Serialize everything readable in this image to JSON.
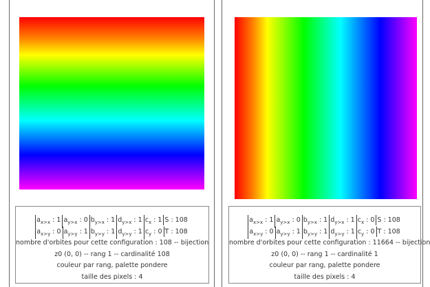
{
  "panels": [
    {
      "formula": [
        [
          {
            "sym": "a",
            "sub": "x>x",
            "value": 1
          },
          {
            "sym": "a",
            "sub": "y>x",
            "value": 0
          },
          {
            "sym": "b",
            "sub": "y>x",
            "value": 1
          },
          {
            "sym": "d",
            "sub": "y>x",
            "value": 1
          },
          {
            "sym": "c",
            "sub": "x",
            "value": 1
          },
          {
            "sym": "S",
            "value": 108
          }
        ],
        [
          {
            "sym": "a",
            "sub": "x>y",
            "value": 0
          },
          {
            "sym": "a",
            "sub": "y>y",
            "value": 1
          },
          {
            "sym": "b",
            "sub": "y>y",
            "value": 1
          },
          {
            "sym": "d",
            "sub": "y>y",
            "value": 1
          },
          {
            "sym": "c",
            "sub": "y",
            "value": 0
          },
          {
            "sym": "T",
            "value": 108
          }
        ]
      ],
      "lines": [
        "nombre d'orbites pour cette configuration : 108 -- bijection",
        "z0 (0, 0) -- rang 1 -- cardinalité 108",
        "couleur par rang, palette pondere",
        "taille des pixels : 4"
      ]
    },
    {
      "formula": [
        [
          {
            "sym": "a",
            "sub": "x>x",
            "value": 1
          },
          {
            "sym": "a",
            "sub": "y>x",
            "value": 0
          },
          {
            "sym": "b",
            "sub": "y>x",
            "value": 1
          },
          {
            "sym": "d",
            "sub": "y>x",
            "value": 1
          },
          {
            "sym": "c",
            "sub": "x",
            "value": 0
          },
          {
            "sym": "S",
            "value": 108
          }
        ],
        [
          {
            "sym": "a",
            "sub": "x>y",
            "value": 0
          },
          {
            "sym": "a",
            "sub": "y>y",
            "value": 1
          },
          {
            "sym": "b",
            "sub": "y>y",
            "value": 1
          },
          {
            "sym": "d",
            "sub": "y>y",
            "value": 1
          },
          {
            "sym": "c",
            "sub": "y",
            "value": 0
          },
          {
            "sym": "T",
            "value": 108
          }
        ]
      ],
      "lines": [
        "nombre d'orbites pour cette configuration : 11664 -- bijection",
        "z0 (0, 0) -- rang 1 -- cardinalité 1",
        "couleur par rang, palette pondere",
        "taille des pixels : 4"
      ]
    }
  ]
}
